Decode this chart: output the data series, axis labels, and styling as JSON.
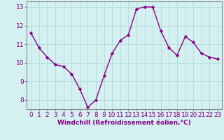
{
  "x": [
    0,
    1,
    2,
    3,
    4,
    5,
    6,
    7,
    8,
    9,
    10,
    11,
    12,
    13,
    14,
    15,
    16,
    17,
    18,
    19,
    20,
    21,
    22,
    23
  ],
  "y": [
    11.6,
    10.8,
    10.3,
    9.9,
    9.8,
    9.4,
    8.6,
    7.6,
    8.0,
    9.3,
    10.5,
    11.2,
    11.5,
    12.9,
    13.0,
    13.0,
    11.7,
    10.8,
    10.4,
    11.4,
    11.1,
    10.5,
    10.3,
    10.2
  ],
  "line_color": "#880088",
  "marker": "D",
  "marker_size": 2.2,
  "bg_color": "#d4f0f0",
  "grid_color": "#b8dede",
  "xlabel": "Windchill (Refroidissement éolien,°C)",
  "ylim_min": 7.5,
  "ylim_max": 13.3,
  "xlim_min": -0.5,
  "xlim_max": 23.5,
  "yticks": [
    8,
    9,
    10,
    11,
    12,
    13
  ],
  "xticks": [
    0,
    1,
    2,
    3,
    4,
    5,
    6,
    7,
    8,
    9,
    10,
    11,
    12,
    13,
    14,
    15,
    16,
    17,
    18,
    19,
    20,
    21,
    22,
    23
  ],
  "xlabel_fontsize": 6.5,
  "tick_fontsize": 6.5,
  "line_width": 1.0
}
